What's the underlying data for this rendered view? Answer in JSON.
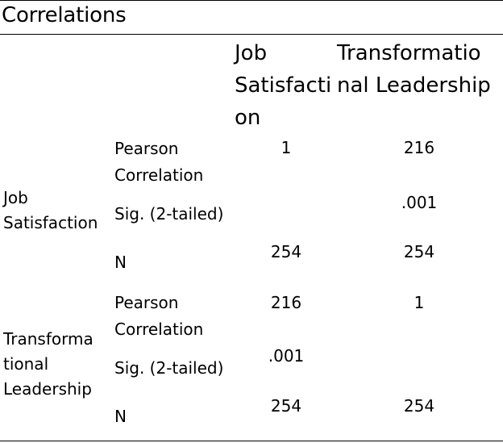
{
  "title": "Correlations",
  "columns": [
    {
      "lines": [
        "Job",
        "Satisfacti",
        "on"
      ]
    },
    {
      "lines": [
        "Transformatio",
        "nal Leadership"
      ]
    }
  ],
  "groups": [
    {
      "label_lines": [
        "Job",
        "Satisfaction"
      ],
      "rows": [
        {
          "stat_lines": [
            "Pearson",
            "Correlation"
          ],
          "values": [
            "1",
            "216"
          ]
        },
        {
          "stat_lines": [
            "Sig. (2-tailed)"
          ],
          "values": [
            "",
            ".001"
          ]
        },
        {
          "stat_lines": [
            "N"
          ],
          "values": [
            "254",
            "254"
          ]
        }
      ]
    },
    {
      "label_lines": [
        "Transforma",
        "tional",
        "Leadership"
      ],
      "rows": [
        {
          "stat_lines": [
            "Pearson",
            "Correlation"
          ],
          "values": [
            "216",
            "1"
          ]
        },
        {
          "stat_lines": [
            "Sig. (2-tailed)"
          ],
          "values": [
            ".001",
            ""
          ]
        },
        {
          "stat_lines": [
            "N"
          ],
          "values": [
            "254",
            "254"
          ]
        }
      ]
    }
  ]
}
